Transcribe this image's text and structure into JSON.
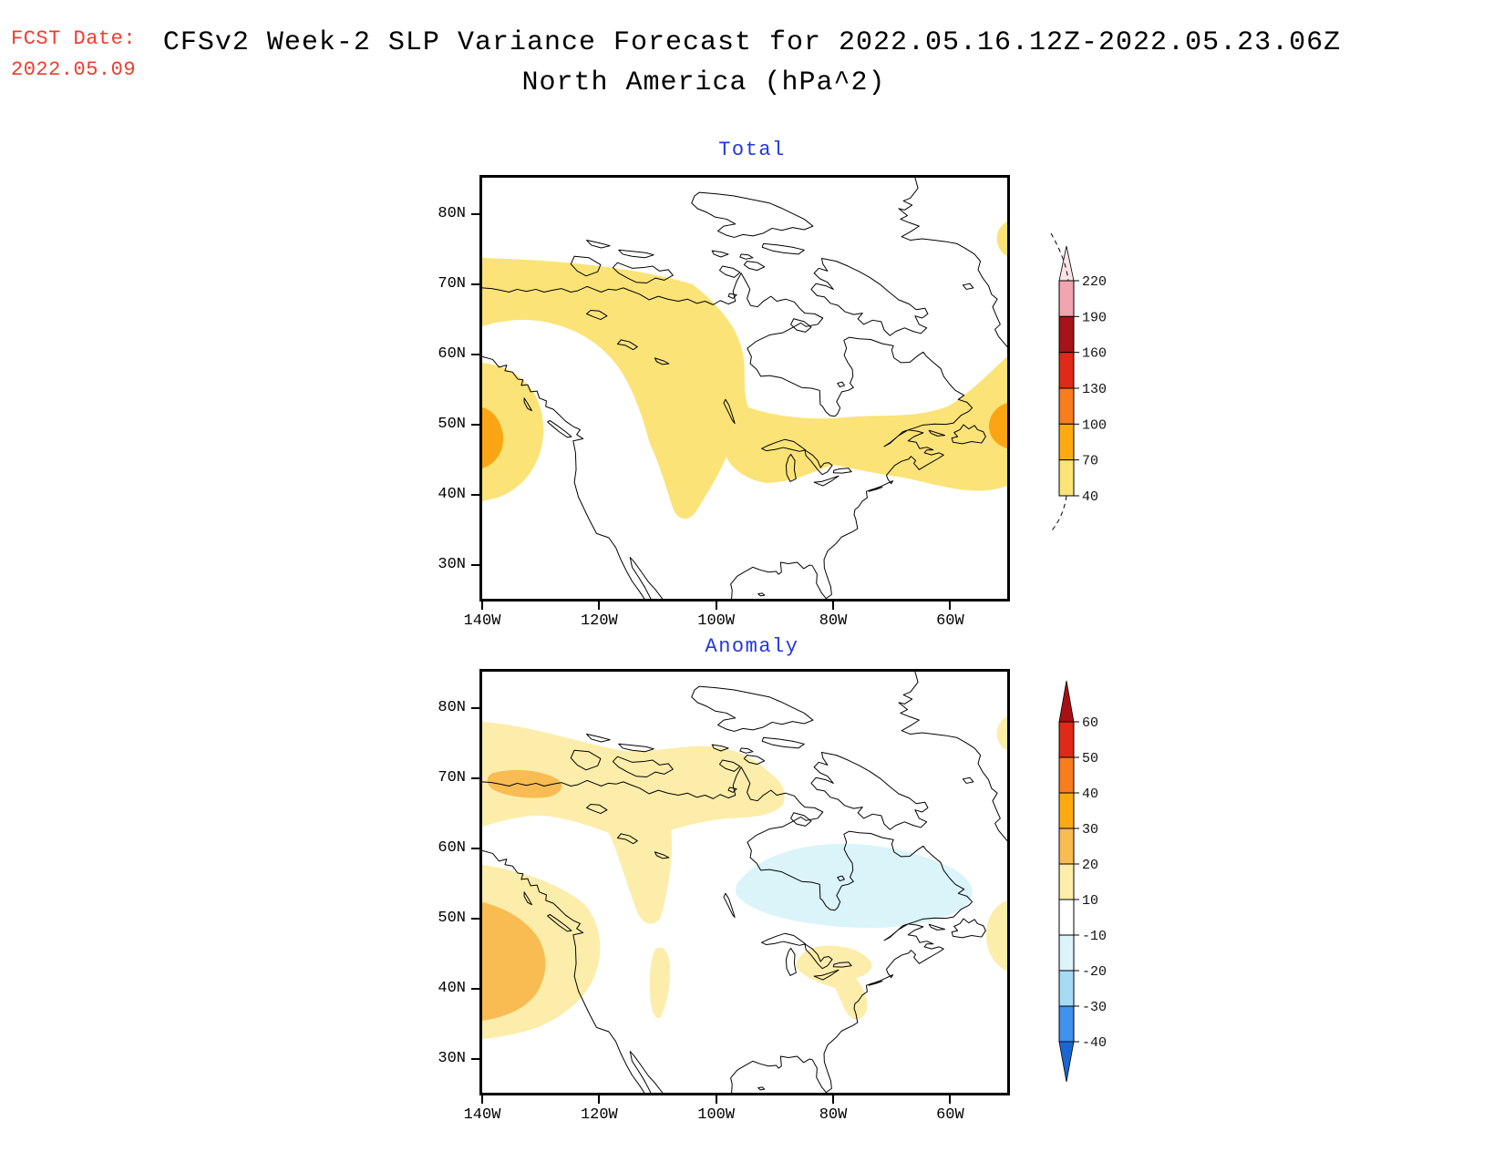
{
  "header": {
    "fcst_label": "FCST Date:",
    "fcst_date": "2022.05.09",
    "title_line1": "CFSv2 Week-2 SLP Variance Forecast for 2022.05.16.12Z-2022.05.23.06Z",
    "title_line2": "North America (hPa^2)",
    "accent_red": "#ee3c2e",
    "accent_blue": "#2336e0"
  },
  "chart_data": [
    {
      "type": "heatmap",
      "title": "Total",
      "units": "hPa^2",
      "region_shown": "North America",
      "x_ticks": [
        "140W",
        "120W",
        "100W",
        "80W",
        "60W"
      ],
      "y_ticks": [
        "80N",
        "70N",
        "60N",
        "50N",
        "40N",
        "30N"
      ],
      "lon_range": [
        -140,
        -50
      ],
      "lat_range": [
        25,
        85
      ],
      "grid": false,
      "colorbar": {
        "position": "right",
        "levels": [
          40,
          70,
          100,
          130,
          160,
          190,
          220
        ],
        "tick_labels_top_to_bottom": [
          "220",
          "190",
          "160",
          "130",
          "100",
          "70",
          "40"
        ],
        "colors_top_to_bottom": [
          "#fbe3e8",
          "#f2a4b0",
          "#a61418",
          "#df2a18",
          "#f87d1e",
          "#fcaa10",
          "#fbe377"
        ],
        "cap_top": "tapered-spike-with-dash",
        "cap_bottom": "dashed-curve"
      },
      "regions": [
        {
          "name": "nw-to-east-variance-band",
          "value_range": "40-70",
          "color": "#fbe377",
          "description": "Broad band from NW Canada (~70N) sweeping SE to the Great Lakes (~38N tongue at 97W) and east across Quebec/Newfoundland to the right edge"
        },
        {
          "name": "pacific-coast-band",
          "value_range": "40-70",
          "color": "#fbe377",
          "description": "Blob on west edge ~40N-58N off British Columbia"
        },
        {
          "name": "pacific-coast-core",
          "value_range": "70-100",
          "color": "#fba414",
          "description": "Orange core on west edge near 50N"
        },
        {
          "name": "atlantic-edge-core",
          "value_range": "70-100",
          "color": "#fba414",
          "description": "Orange core on right edge near 50N east of Newfoundland"
        },
        {
          "name": "greenland-edge-sliver",
          "value_range": "40-70",
          "color": "#fbe377",
          "description": "Small sliver at right edge near 77N"
        }
      ]
    },
    {
      "type": "heatmap",
      "title": "Anomaly",
      "units": "hPa^2",
      "region_shown": "North America",
      "x_ticks": [
        "140W",
        "120W",
        "100W",
        "80W",
        "60W"
      ],
      "y_ticks": [
        "80N",
        "70N",
        "60N",
        "50N",
        "40N",
        "30N"
      ],
      "lon_range": [
        -140,
        -50
      ],
      "lat_range": [
        25,
        85
      ],
      "grid": false,
      "colorbar": {
        "position": "right",
        "levels": [
          -40,
          -30,
          -20,
          -10,
          10,
          20,
          30,
          40,
          50,
          60
        ],
        "tick_labels_top_to_bottom": [
          "60",
          "50",
          "40",
          "30",
          "20",
          "10",
          "-10",
          "-20",
          "-30",
          "-40"
        ],
        "colors_top_to_bottom": [
          "#a91014",
          "#df2a18",
          "#f87d1e",
          "#fcaa10",
          "#f8bc52",
          "#fcedaa",
          "#ffffff",
          "#daf4fa",
          "#a6daf5",
          "#4191ee",
          "#1b67d2"
        ],
        "cap_top": "triangle",
        "cap_bottom": "triangle"
      },
      "regions": [
        {
          "name": "arctic-band",
          "value_range": "10-20",
          "color": "#fcedaa",
          "description": "Band across NW Canada and Arctic islands ~65N-78N from west edge to ~95W with lobe down to ~62N"
        },
        {
          "name": "arctic-band-core",
          "value_range": "20-30",
          "color": "#f8bc52",
          "description": "Orange blob along 70N near 130W"
        },
        {
          "name": "pacific-coast-band",
          "value_range": "10-20",
          "color": "#fcedaa",
          "description": "Blob on west edge ~33N-58N"
        },
        {
          "name": "pacific-coast-core",
          "value_range": "20-30",
          "color": "#f8bc52",
          "description": "Orange core on west edge ~40N-53N"
        },
        {
          "name": "hudson-bay-negative",
          "value_range": "-20 to -10",
          "color": "#daf4fa",
          "description": "Pale cyan patch over Hudson Bay / northern Quebec ~53N-61N"
        },
        {
          "name": "central-plains-strip",
          "value_range": "10-20",
          "color": "#fcedaa",
          "description": "Narrow strip near 100W from ~46N to 37N"
        },
        {
          "name": "great-lakes-patch",
          "value_range": "10-20",
          "color": "#fcedaa",
          "description": "Patch over lower Great Lakes extending to mid-Atlantic coast"
        },
        {
          "name": "newfoundland-edge",
          "value_range": "10-20",
          "color": "#fcedaa",
          "description": "Patch at right edge ~45N-53N"
        },
        {
          "name": "greenland-edge-sliver",
          "value_range": "10-20",
          "color": "#fcedaa",
          "description": "Small sliver at right edge near 77N"
        }
      ]
    }
  ]
}
